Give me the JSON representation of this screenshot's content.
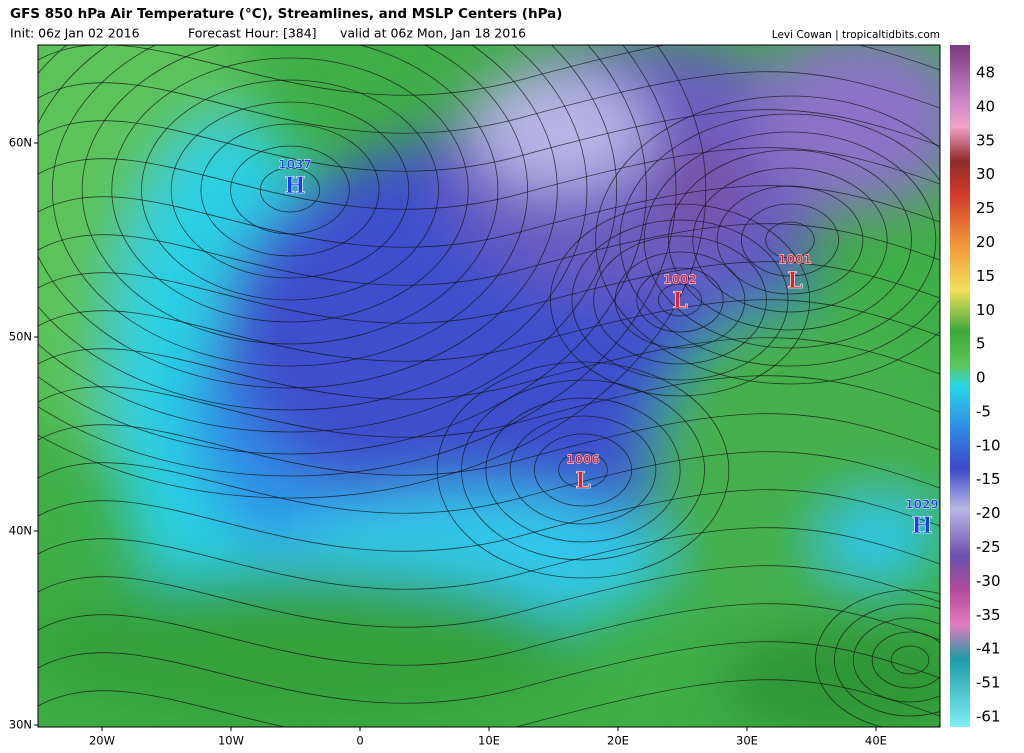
{
  "header": {
    "title": "GFS 850 hPa Air Temperature (°C), Streamlines, and MSLP Centers (hPa)",
    "init": "Init: 06z Jan 02 2016",
    "forecast_hour": "Forecast Hour: [384]",
    "valid": "valid at 06z Mon, Jan 18 2016",
    "credit": "Levi Cowan | tropicaltidbits.com"
  },
  "map": {
    "lat_labels": [
      "60N",
      "50N",
      "40N",
      "30N"
    ],
    "lon_labels": [
      "20W",
      "10W",
      "0",
      "10E",
      "20E",
      "30E",
      "40E"
    ],
    "centers": [
      {
        "type": "H",
        "value": 1037
      },
      {
        "type": "L",
        "value": 1002
      },
      {
        "type": "L",
        "value": 1001
      },
      {
        "type": "L",
        "value": 1006
      },
      {
        "type": "H",
        "value": 1029
      }
    ]
  },
  "colorbar": {
    "labels": [
      48,
      40,
      35,
      30,
      25,
      20,
      15,
      10,
      5,
      0,
      -5,
      -10,
      -15,
      -20,
      -25,
      -30,
      -35,
      -41,
      -51,
      -61
    ]
  }
}
